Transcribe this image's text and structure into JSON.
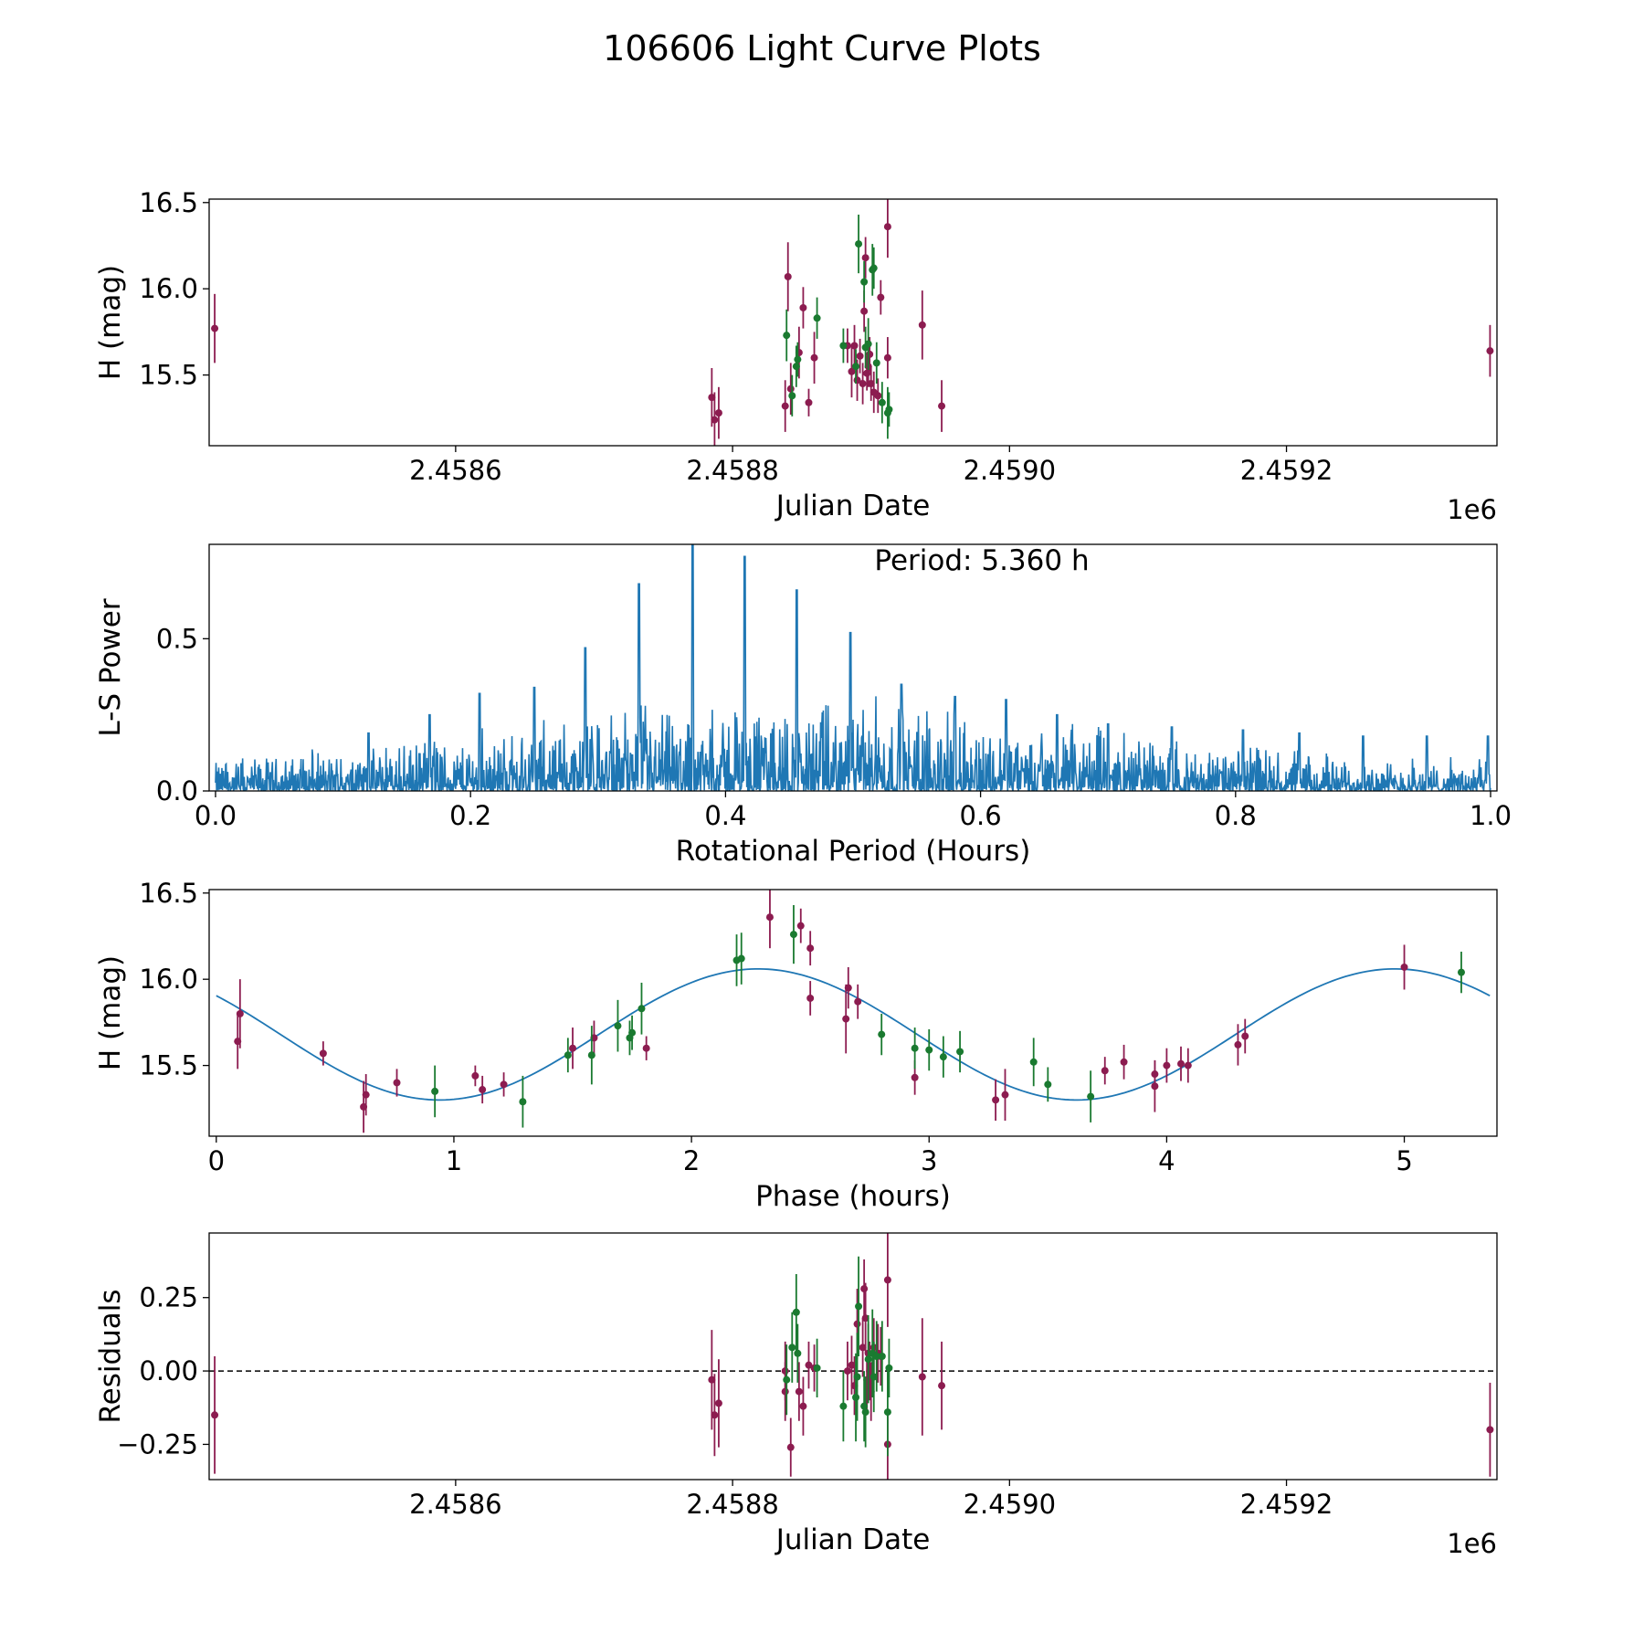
{
  "figure_title": "106606 Light Curve Plots",
  "colors": {
    "purple": "#8c1c50",
    "green": "#1a7a30",
    "curve": "#1f77b4"
  },
  "chart_data": [
    {
      "id": "lc",
      "type": "scatter",
      "title": "",
      "xlabel": "Julian Date",
      "ylabel": "H (mag)",
      "offset_label": "1e6",
      "xlim": [
        2458422,
        2459352
      ],
      "ylim": [
        15.09,
        16.52
      ],
      "xticks": [
        2458600,
        2458800,
        2459000,
        2459200
      ],
      "xtick_labels": [
        "2.4586",
        "2.4588",
        "2.4590",
        "2.4592"
      ],
      "yticks": [
        15.5,
        16.0,
        16.5
      ],
      "ytick_labels": [
        "15.5",
        "16.0",
        "16.5"
      ],
      "series": [
        {
          "name": "purple",
          "color": "#8c1c50",
          "points": [
            [
              2458426,
              15.77,
              0.2
            ],
            [
              2458785,
              15.37,
              0.17
            ],
            [
              2458787,
              15.24,
              0.16
            ],
            [
              2458790,
              15.28,
              0.15
            ],
            [
              2458838,
              15.32,
              0.15
            ],
            [
              2458840,
              16.07,
              0.2
            ],
            [
              2458842,
              15.42,
              0.15
            ],
            [
              2458848,
              15.63,
              0.15
            ],
            [
              2458851,
              15.89,
              0.12
            ],
            [
              2458855,
              15.34,
              0.08
            ],
            [
              2458859,
              15.6,
              0.15
            ],
            [
              2458883,
              15.67,
              0.1
            ],
            [
              2458886,
              15.52,
              0.15
            ],
            [
              2458888,
              15.67,
              0.12
            ],
            [
              2458890,
              15.47,
              0.12
            ],
            [
              2458892,
              15.61,
              0.1
            ],
            [
              2458894,
              15.45,
              0.12
            ],
            [
              2458895,
              15.87,
              0.12
            ],
            [
              2458896,
              16.18,
              0.12
            ],
            [
              2458897,
              15.51,
              0.1
            ],
            [
              2458898,
              15.55,
              0.12
            ],
            [
              2458899,
              15.62,
              0.1
            ],
            [
              2458900,
              15.45,
              0.1
            ],
            [
              2458902,
              15.4,
              0.12
            ],
            [
              2458905,
              15.38,
              0.1
            ],
            [
              2458907,
              15.95,
              0.1
            ],
            [
              2458912,
              16.36,
              0.18
            ],
            [
              2458912,
              15.6,
              0.12
            ],
            [
              2458937,
              15.79,
              0.2
            ],
            [
              2458951,
              15.32,
              0.15
            ],
            [
              2459347,
              15.64,
              0.15
            ]
          ]
        },
        {
          "name": "green",
          "color": "#1a7a30",
          "points": [
            [
              2458839,
              15.73,
              0.15
            ],
            [
              2458843,
              15.38,
              0.12
            ],
            [
              2458846,
              15.55,
              0.12
            ],
            [
              2458847,
              15.59,
              0.1
            ],
            [
              2458861,
              15.83,
              0.12
            ],
            [
              2458880,
              15.67,
              0.1
            ],
            [
              2458889,
              15.55,
              0.1
            ],
            [
              2458891,
              16.26,
              0.17
            ],
            [
              2458895,
              16.04,
              0.12
            ],
            [
              2458896,
              15.66,
              0.12
            ],
            [
              2458898,
              15.68,
              0.15
            ],
            [
              2458901,
              16.11,
              0.15
            ],
            [
              2458902,
              16.12,
              0.12
            ],
            [
              2458904,
              15.57,
              0.12
            ],
            [
              2458908,
              15.34,
              0.12
            ],
            [
              2458912,
              15.28,
              0.15
            ],
            [
              2458913,
              15.3,
              0.1
            ]
          ]
        }
      ]
    },
    {
      "id": "ls",
      "type": "line",
      "title": "Period: 5.360 h",
      "xlabel": "Rotational Period (Hours)",
      "ylabel": "L-S Power",
      "xlim": [
        -0.005,
        1.005
      ],
      "ylim": [
        0,
        0.81
      ],
      "xticks": [
        0,
        0.2,
        0.4,
        0.6,
        0.8,
        1.0
      ],
      "xtick_labels": [
        "0.0",
        "0.2",
        "0.4",
        "0.6",
        "0.8",
        "1.0"
      ],
      "yticks": [
        0,
        0.5
      ],
      "ytick_labels": [
        "0.0",
        "0.5"
      ],
      "noise": {
        "samples": 2400,
        "x_range": [
          0.0,
          1.0
        ],
        "base_level": 0.07,
        "rise_level": 0.22,
        "rise_center": 0.45,
        "rise_width": 0.28
      },
      "peaks": [
        [
          0.332,
          0.68
        ],
        [
          0.374,
          0.81
        ],
        [
          0.415,
          0.77
        ],
        [
          0.456,
          0.66
        ],
        [
          0.498,
          0.52
        ],
        [
          0.29,
          0.47
        ],
        [
          0.25,
          0.34
        ],
        [
          0.207,
          0.32
        ],
        [
          0.538,
          0.35
        ],
        [
          0.58,
          0.31
        ],
        [
          0.168,
          0.25
        ],
        [
          0.12,
          0.19
        ],
        [
          0.62,
          0.3
        ],
        [
          0.66,
          0.25
        ],
        [
          0.7,
          0.22
        ],
        [
          0.75,
          0.21
        ],
        [
          0.806,
          0.2
        ],
        [
          0.85,
          0.19
        ],
        [
          0.9,
          0.18
        ],
        [
          0.95,
          0.18
        ],
        [
          0.998,
          0.18
        ]
      ]
    },
    {
      "id": "phase",
      "type": "scatter",
      "title": "",
      "xlabel": "Phase (hours)",
      "ylabel": "H (mag)",
      "xlim": [
        -0.03,
        5.39
      ],
      "ylim": [
        15.09,
        16.52
      ],
      "xticks": [
        0,
        1,
        2,
        3,
        4,
        5
      ],
      "xtick_labels": [
        "0",
        "1",
        "2",
        "3",
        "4",
        "5"
      ],
      "yticks": [
        15.5,
        16.0,
        16.5
      ],
      "ytick_labels": [
        "15.5",
        "16.0",
        "16.5"
      ],
      "fit": {
        "mean": 15.68,
        "amplitude": 0.38,
        "period": 2.68,
        "peak_phase": 2.28,
        "x_range": [
          0.0,
          5.36
        ]
      },
      "series": [
        {
          "name": "purple",
          "color": "#8c1c50",
          "points": [
            [
              0.09,
              15.64,
              0.16
            ],
            [
              0.1,
              15.8,
              0.2
            ],
            [
              0.45,
              15.57,
              0.07
            ],
            [
              0.62,
              15.26,
              0.15
            ],
            [
              0.63,
              15.33,
              0.12
            ],
            [
              0.76,
              15.4,
              0.08
            ],
            [
              1.09,
              15.44,
              0.06
            ],
            [
              1.12,
              15.36,
              0.08
            ],
            [
              1.21,
              15.39,
              0.07
            ],
            [
              1.5,
              15.6,
              0.12
            ],
            [
              1.59,
              15.66,
              0.1
            ],
            [
              1.81,
              15.6,
              0.07
            ],
            [
              2.33,
              16.36,
              0.18
            ],
            [
              2.46,
              16.31,
              0.1
            ],
            [
              2.5,
              16.18,
              0.1
            ],
            [
              2.5,
              15.89,
              0.1
            ],
            [
              2.65,
              15.77,
              0.2
            ],
            [
              2.66,
              15.95,
              0.12
            ],
            [
              2.7,
              15.87,
              0.1
            ],
            [
              2.94,
              15.43,
              0.1
            ],
            [
              3.28,
              15.3,
              0.12
            ],
            [
              3.32,
              15.33,
              0.15
            ],
            [
              3.74,
              15.47,
              0.08
            ],
            [
              3.82,
              15.52,
              0.1
            ],
            [
              3.95,
              15.45,
              0.08
            ],
            [
              3.95,
              15.38,
              0.15
            ],
            [
              4.0,
              15.5,
              0.1
            ],
            [
              4.06,
              15.51,
              0.1
            ],
            [
              4.09,
              15.5,
              0.1
            ],
            [
              4.3,
              15.62,
              0.12
            ],
            [
              4.33,
              15.67,
              0.1
            ],
            [
              5.0,
              16.07,
              0.13
            ]
          ]
        },
        {
          "name": "green",
          "color": "#1a7a30",
          "points": [
            [
              0.92,
              15.35,
              0.15
            ],
            [
              1.29,
              15.29,
              0.15
            ],
            [
              1.48,
              15.56,
              0.1
            ],
            [
              1.58,
              15.56,
              0.17
            ],
            [
              1.69,
              15.73,
              0.15
            ],
            [
              1.74,
              15.66,
              0.1
            ],
            [
              1.75,
              15.69,
              0.1
            ],
            [
              1.79,
              15.83,
              0.15
            ],
            [
              2.19,
              16.11,
              0.15
            ],
            [
              2.21,
              16.12,
              0.15
            ],
            [
              2.43,
              16.26,
              0.17
            ],
            [
              2.8,
              15.68,
              0.12
            ],
            [
              2.94,
              15.6,
              0.12
            ],
            [
              3.0,
              15.59,
              0.12
            ],
            [
              3.06,
              15.55,
              0.12
            ],
            [
              3.13,
              15.58,
              0.12
            ],
            [
              3.44,
              15.52,
              0.14
            ],
            [
              3.5,
              15.39,
              0.1
            ],
            [
              3.68,
              15.32,
              0.15
            ],
            [
              5.24,
              16.04,
              0.12
            ]
          ]
        }
      ]
    },
    {
      "id": "res",
      "type": "scatter",
      "title": "",
      "xlabel": "Julian Date",
      "ylabel": "Residuals",
      "offset_label": "1e6",
      "xlim": [
        2458422,
        2459352
      ],
      "ylim": [
        -0.37,
        0.47
      ],
      "xticks": [
        2458600,
        2458800,
        2459000,
        2459200
      ],
      "xtick_labels": [
        "2.4586",
        "2.4588",
        "2.4590",
        "2.4592"
      ],
      "yticks": [
        -0.25,
        0.0,
        0.25
      ],
      "ytick_labels": [
        "−0.25",
        "0.00",
        "0.25"
      ],
      "zero_line": 0,
      "series": [
        {
          "name": "purple",
          "color": "#8c1c50",
          "points": [
            [
              2458426,
              -0.15,
              0.2
            ],
            [
              2458785,
              -0.03,
              0.17
            ],
            [
              2458787,
              -0.15,
              0.14
            ],
            [
              2458790,
              -0.11,
              0.15
            ],
            [
              2458838,
              0.0,
              0.1
            ],
            [
              2458838,
              -0.07,
              0.1
            ],
            [
              2458842,
              -0.26,
              0.1
            ],
            [
              2458848,
              -0.07,
              0.1
            ],
            [
              2458851,
              -0.12,
              0.1
            ],
            [
              2458855,
              0.02,
              0.08
            ],
            [
              2458859,
              0.01,
              0.08
            ],
            [
              2458883,
              0.0,
              0.1
            ],
            [
              2458886,
              0.02,
              0.1
            ],
            [
              2458888,
              -0.05,
              0.1
            ],
            [
              2458890,
              0.16,
              0.12
            ],
            [
              2458894,
              0.08,
              0.1
            ],
            [
              2458895,
              0.28,
              0.1
            ],
            [
              2458896,
              0.18,
              0.12
            ],
            [
              2458897,
              -0.03,
              0.1
            ],
            [
              2458898,
              0.06,
              0.1
            ],
            [
              2458899,
              0.0,
              0.1
            ],
            [
              2458900,
              -0.07,
              0.1
            ],
            [
              2458902,
              0.08,
              0.1
            ],
            [
              2458905,
              0.06,
              0.1
            ],
            [
              2458907,
              0.05,
              0.1
            ],
            [
              2458912,
              0.31,
              0.16
            ],
            [
              2458912,
              -0.25,
              0.12
            ],
            [
              2458937,
              -0.02,
              0.2
            ],
            [
              2458951,
              -0.05,
              0.15
            ],
            [
              2459347,
              -0.2,
              0.16
            ]
          ]
        },
        {
          "name": "green",
          "color": "#1a7a30",
          "points": [
            [
              2458839,
              -0.03,
              0.12
            ],
            [
              2458843,
              0.08,
              0.12
            ],
            [
              2458846,
              0.2,
              0.13
            ],
            [
              2458847,
              0.06,
              0.1
            ],
            [
              2458861,
              0.01,
              0.1
            ],
            [
              2458880,
              -0.12,
              0.12
            ],
            [
              2458889,
              -0.09,
              0.15
            ],
            [
              2458890,
              -0.02,
              0.15
            ],
            [
              2458891,
              0.22,
              0.17
            ],
            [
              2458895,
              -0.12,
              0.12
            ],
            [
              2458896,
              -0.14,
              0.12
            ],
            [
              2458898,
              0.04,
              0.15
            ],
            [
              2458901,
              0.06,
              0.15
            ],
            [
              2458902,
              -0.02,
              0.12
            ],
            [
              2458904,
              0.05,
              0.12
            ],
            [
              2458908,
              0.05,
              0.12
            ],
            [
              2458912,
              -0.14,
              0.15
            ],
            [
              2458913,
              0.01,
              0.1
            ]
          ]
        }
      ]
    }
  ]
}
